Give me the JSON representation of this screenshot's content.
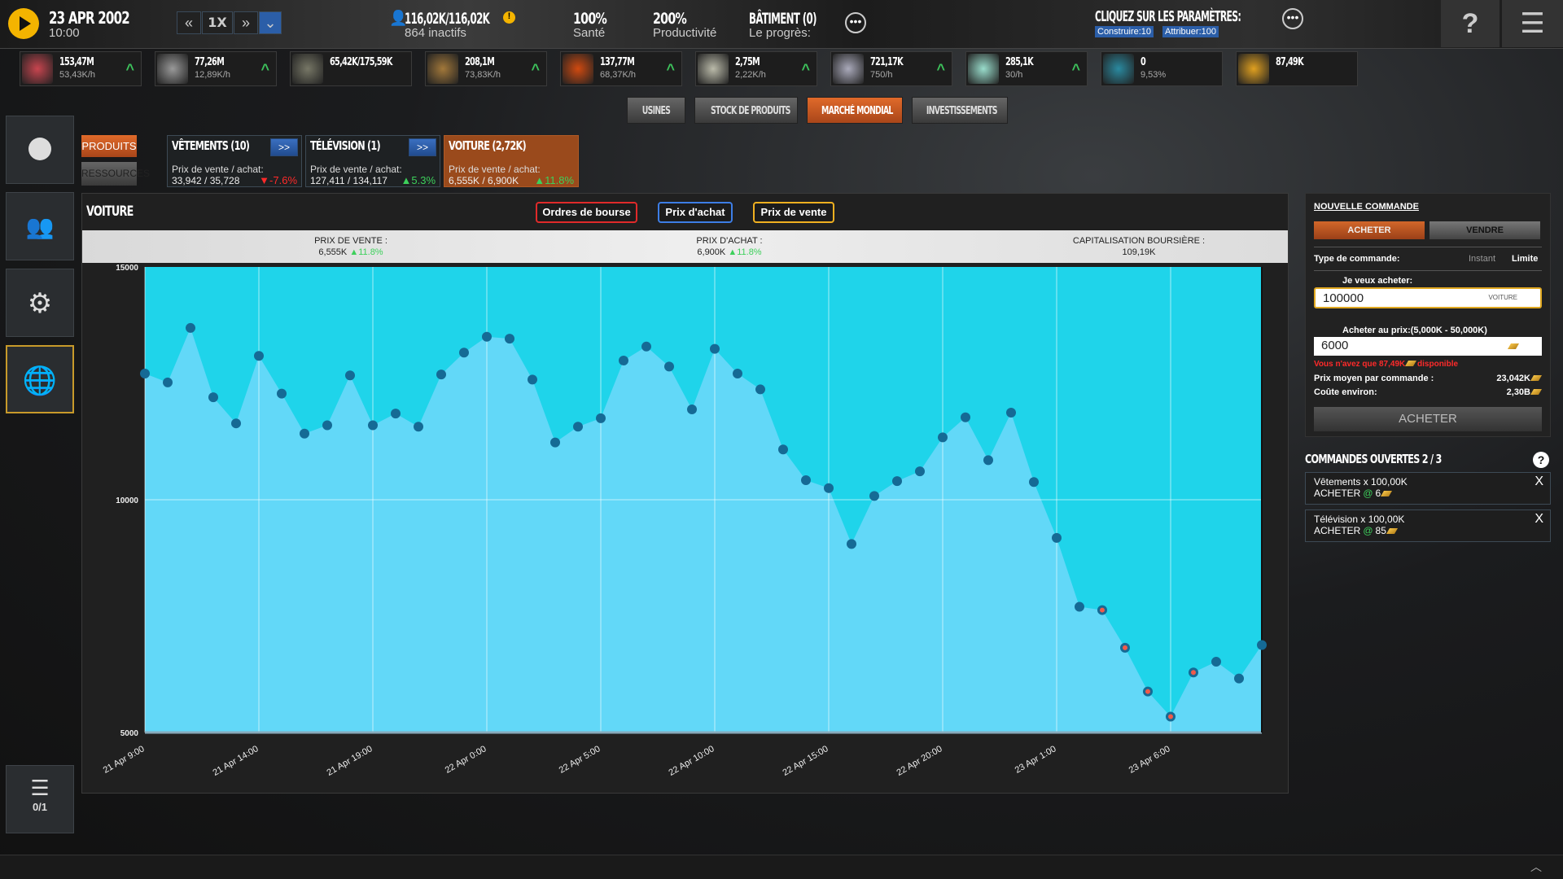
{
  "topbar": {
    "date": "23 APR 2002",
    "time": "10:00",
    "speed": "1X",
    "population": "116,02K/116,02K",
    "inactive": "864 inactifs",
    "health_value": "100%",
    "health_label": "Santé",
    "productivity_value": "200%",
    "productivity_label": "Productivité",
    "building": "BÂTIMENT (0)",
    "progress": "Le progrès:",
    "params_title": "CLIQUEZ SUR LES PARAMÈTRES:",
    "build_badge": "Construire:10",
    "assign_badge": "Attribuer:100",
    "help": "?"
  },
  "resources": [
    {
      "icon": "meat-icon",
      "value": "153,47M",
      "rate": "53,43K/h",
      "up": true,
      "color": "#c8454f"
    },
    {
      "icon": "bottle-icon",
      "value": "77,26M",
      "rate": "12,89K/h",
      "up": true,
      "color": "#999"
    },
    {
      "icon": "hammer-icon",
      "value": "65,42K/175,59K",
      "rate": "",
      "up": false,
      "color": "#776"
    },
    {
      "icon": "wood-log-icon",
      "value": "208,1M",
      "rate": "73,83K/h",
      "up": true,
      "color": "#a2783a"
    },
    {
      "icon": "fire-ore-icon",
      "value": "137,77M",
      "rate": "68,37K/h",
      "up": true,
      "color": "#d04a10"
    },
    {
      "icon": "stone-icon",
      "value": "2,75M",
      "rate": "2,22K/h",
      "up": true,
      "color": "#bba"
    },
    {
      "icon": "steel-bar-icon",
      "value": "721,17K",
      "rate": "750/h",
      "up": true,
      "color": "#aab"
    },
    {
      "icon": "crystal-bar-icon",
      "value": "285,1K",
      "rate": "30/h",
      "up": true,
      "color": "#9dc"
    },
    {
      "icon": "flask-icon",
      "value": "0",
      "rate": "9,53%",
      "up": false,
      "color": "#2a8aa0"
    },
    {
      "icon": "gold-bar-icon",
      "value": "87,49K",
      "rate": "",
      "up": false,
      "color": "#e0a020"
    }
  ],
  "nav_tabs": [
    {
      "label": "USINES",
      "active": false
    },
    {
      "label": "STOCK DE PRODUITS",
      "active": false
    },
    {
      "label": "MARCHÉ MONDIAL",
      "active": true
    },
    {
      "label": "INVESTISSEMENTS",
      "active": false
    }
  ],
  "sidebar": {
    "items": [
      "compass-icon",
      "people-icon",
      "gear-icon",
      "globe-icon"
    ],
    "queue": "0/1"
  },
  "category": {
    "products": "PRODUITS",
    "resources": "RESSOURCES"
  },
  "product_tabs": [
    {
      "title": "VÊTEMENTS (10)",
      "label": "Prix de vente / achat:",
      "prices": "33,942 / 35,728",
      "change": "▼-7.6%",
      "dir": "down",
      "arrow": ">>"
    },
    {
      "title": "TÉLÉVISION (1)",
      "label": "Prix de vente / achat:",
      "prices": "127,411 / 134,117",
      "change": "▲5.3%",
      "dir": "up",
      "arrow": ">>"
    },
    {
      "title": "VOITURE (2,72K)",
      "label": "Prix de vente / achat:",
      "prices": "6,555K / 6,900K",
      "change": "▲11.8%",
      "dir": "up",
      "arrow": ""
    }
  ],
  "main": {
    "title": "VOITURE",
    "filters": [
      {
        "label": "Ordres de bourse",
        "color": "#e02a2a"
      },
      {
        "label": "Prix d'achat",
        "color": "#3d7ee6"
      },
      {
        "label": "Prix de vente",
        "color": "#f0b020"
      }
    ],
    "stats": {
      "sell_label": "PRIX DE VENTE :",
      "sell_value": "6,555K",
      "sell_change": "▲11.8%",
      "buy_label": "PRIX D'ACHAT :",
      "buy_value": "6,900K",
      "buy_change": "▲11.8%",
      "cap_label": "CAPITALISATION BOURSIÈRE :",
      "cap_value": "109,19K"
    }
  },
  "chart_data": {
    "type": "area",
    "ylim": [
      5000,
      15000
    ],
    "yticks": [
      "15000",
      "10000",
      "5000"
    ],
    "xticks": [
      "21 Apr 9:00",
      "21 Apr 14:00",
      "21 Apr 19:00",
      "22 Apr 0:00",
      "22 Apr 5:00",
      "22 Apr 10:00",
      "22 Apr 15:00",
      "22 Apr 20:00",
      "23 Apr 1:00",
      "23 Apr 6:00"
    ],
    "x_start": "21 Apr 9:00",
    "x_step": "1h",
    "grid": true,
    "values": [
      12710,
      12520,
      13690,
      12200,
      11640,
      13090,
      12280,
      11420,
      11600,
      12670,
      11600,
      11850,
      11570,
      12690,
      13160,
      13500,
      13460,
      12580,
      11230,
      11570,
      11750,
      12990,
      13290,
      12860,
      11940,
      13240,
      12710,
      12370,
      11080,
      10420,
      10250,
      9050,
      10080,
      10400,
      10610,
      11340,
      11770,
      10850,
      11870,
      10380,
      9180,
      7700,
      7630,
      6820,
      5880,
      5340,
      6290,
      6520,
      6160,
      6880
    ],
    "order_marked": [
      42,
      43,
      44,
      45,
      46
    ],
    "colors": {
      "upper": "#1fd4ea",
      "lower": "#62d8f8",
      "point": "#156a95",
      "order": "#f05a4a"
    }
  },
  "order_panel": {
    "title": "NOUVELLE COMMANDE",
    "buy": "ACHETER",
    "sell": "VENDRE",
    "type_label": "Type de commande:",
    "type_instant": "Instant",
    "type_limit": "Limite",
    "qty_label": "Je veux acheter:",
    "qty_value": "100000",
    "qty_unit": "VOITURE",
    "price_label": "Acheter au prix:(5,000K - 50,000K)",
    "price_value": "6000",
    "warning_pre": "Vous n'avez que 87,49K",
    "warning_post": "disponible",
    "avg_label": "Prix moyen par commande :",
    "avg_value": "23,042K",
    "cost_label": "Coûte environ:",
    "cost_value": "2,30B",
    "submit": "ACHETER"
  },
  "open_orders": {
    "title": "COMMANDES OUVERTES 2 / 3",
    "items": [
      {
        "line1": "Vêtements x 100,00K",
        "action": "ACHETER",
        "at": "@",
        "price": "6",
        "close": "X"
      },
      {
        "line1": "Télévision x 100,00K",
        "action": "ACHETER",
        "at": "@",
        "price": "85",
        "close": "X"
      }
    ]
  }
}
